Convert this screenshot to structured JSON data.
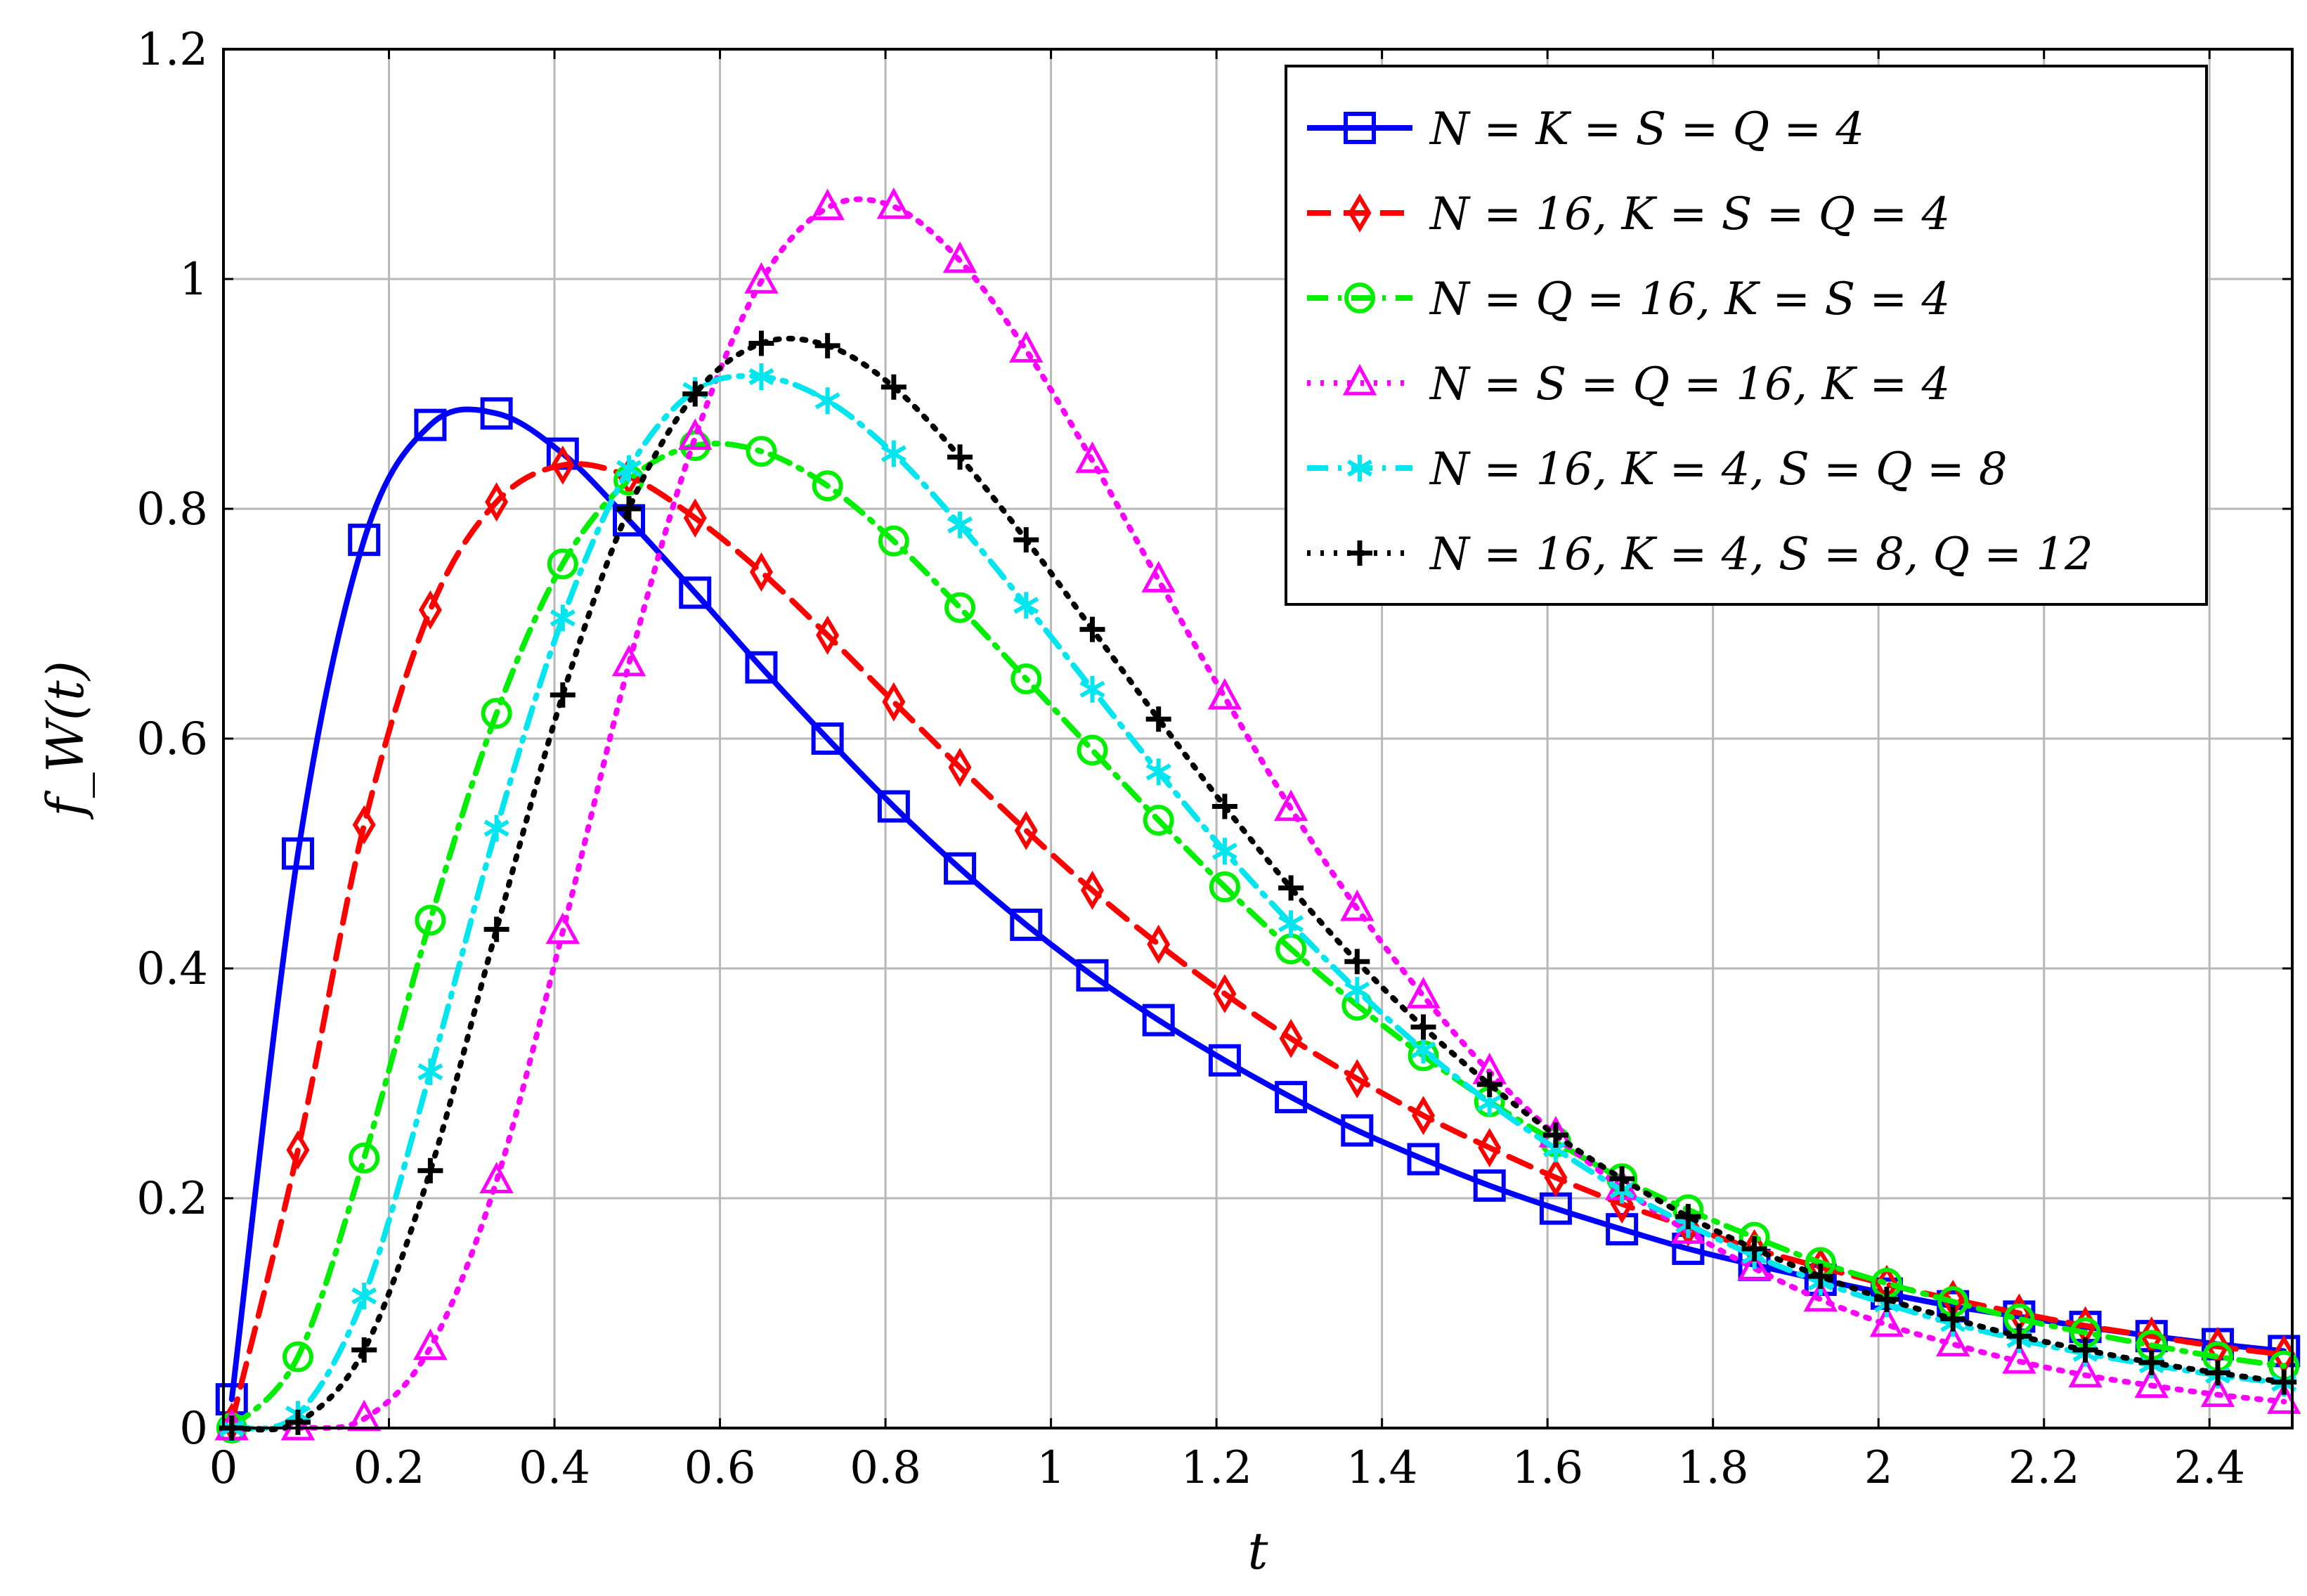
{
  "chart_data": {
    "type": "line",
    "title": "",
    "xlabel": "t",
    "ylabel": "f_W(t)",
    "xlim": [
      0,
      2.5
    ],
    "ylim": [
      0,
      1.2
    ],
    "grid": true,
    "legend_position": "top-right",
    "xticks": [
      0,
      0.2,
      0.4,
      0.6,
      0.8,
      1,
      1.2,
      1.4,
      1.6,
      1.8,
      2,
      2.2,
      2.4
    ],
    "xtick_labels": [
      "0",
      "0.2",
      "0.4",
      "0.6",
      "0.8",
      "1",
      "1.2",
      "1.4",
      "1.6",
      "1.8",
      "2",
      "2.2",
      "2.4"
    ],
    "yticks": [
      0,
      0.2,
      0.4,
      0.6,
      0.8,
      1,
      1.2
    ],
    "ytick_labels": [
      "0",
      "0.2",
      "0.4",
      "0.6",
      "0.8",
      "1",
      "1.2"
    ],
    "marker_x": [
      0.01,
      0.09,
      0.17,
      0.25,
      0.33,
      0.41,
      0.49,
      0.57,
      0.65,
      0.73,
      0.81,
      0.89,
      0.97,
      1.05,
      1.13,
      1.21,
      1.29,
      1.37,
      1.45,
      1.53,
      1.61,
      1.69,
      1.77,
      1.85,
      1.93,
      2.01,
      2.09,
      2.17,
      2.25,
      2.33,
      2.41,
      2.49
    ],
    "series": [
      {
        "name": "N = K = S = Q = 4",
        "color": "#0000ff",
        "line_style": "solid",
        "marker": "square",
        "values": [
          0.025,
          0.5,
          0.773,
          0.873,
          0.883,
          0.848,
          0.79,
          0.727,
          0.662,
          0.6,
          0.541,
          0.487,
          0.438,
          0.394,
          0.355,
          0.32,
          0.288,
          0.259,
          0.234,
          0.211,
          0.191,
          0.173,
          0.156,
          0.142,
          0.129,
          0.117,
          0.106,
          0.097,
          0.088,
          0.08,
          0.073,
          0.067
        ]
      },
      {
        "name": "N = 16, K = S = Q = 4",
        "color": "#ff0000",
        "line_style": "dashed",
        "marker": "diamond",
        "values": [
          0.005,
          0.242,
          0.525,
          0.712,
          0.806,
          0.838,
          0.828,
          0.792,
          0.745,
          0.69,
          0.632,
          0.575,
          0.52,
          0.468,
          0.421,
          0.378,
          0.339,
          0.304,
          0.272,
          0.244,
          0.218,
          0.195,
          0.175,
          0.156,
          0.14,
          0.125,
          0.112,
          0.1,
          0.089,
          0.08,
          0.071,
          0.064
        ]
      },
      {
        "name": "N = Q = 16, K = S = 4",
        "color": "#00ee00",
        "line_style": "dashdot",
        "marker": "circle",
        "values": [
          0.0,
          0.062,
          0.235,
          0.442,
          0.622,
          0.752,
          0.825,
          0.855,
          0.85,
          0.82,
          0.772,
          0.714,
          0.652,
          0.59,
          0.529,
          0.471,
          0.417,
          0.368,
          0.324,
          0.284,
          0.249,
          0.217,
          0.19,
          0.166,
          0.144,
          0.126,
          0.11,
          0.095,
          0.083,
          0.072,
          0.062,
          0.054
        ]
      },
      {
        "name": "N = S = Q = 16, K = 4",
        "color": "#ff00ff",
        "line_style": "dotted",
        "marker": "triangle",
        "values": [
          0.0,
          0.0,
          0.008,
          0.07,
          0.215,
          0.432,
          0.665,
          0.862,
          0.998,
          1.062,
          1.063,
          1.016,
          0.938,
          0.842,
          0.738,
          0.636,
          0.539,
          0.452,
          0.376,
          0.31,
          0.255,
          0.209,
          0.171,
          0.139,
          0.112,
          0.09,
          0.073,
          0.058,
          0.046,
          0.037,
          0.029,
          0.023
        ]
      },
      {
        "name": "N = 16, K = 4, S = Q = 8",
        "color": "#00e5ee",
        "line_style": "dashdot",
        "marker": "asterisk",
        "values": [
          0.0,
          0.012,
          0.115,
          0.31,
          0.522,
          0.705,
          0.835,
          0.903,
          0.915,
          0.894,
          0.848,
          0.786,
          0.716,
          0.643,
          0.571,
          0.502,
          0.439,
          0.381,
          0.329,
          0.283,
          0.243,
          0.207,
          0.177,
          0.15,
          0.127,
          0.108,
          0.091,
          0.077,
          0.065,
          0.055,
          0.046,
          0.039
        ]
      },
      {
        "name": "N = 16, K = 4, S = 8, Q = 12",
        "color": "#000000",
        "line_style": "dotted",
        "marker": "plus",
        "values": [
          0.0,
          0.005,
          0.068,
          0.224,
          0.434,
          0.638,
          0.8,
          0.9,
          0.944,
          0.942,
          0.906,
          0.845,
          0.773,
          0.695,
          0.617,
          0.541,
          0.47,
          0.406,
          0.349,
          0.299,
          0.255,
          0.217,
          0.184,
          0.156,
          0.132,
          0.112,
          0.095,
          0.08,
          0.068,
          0.057,
          0.048,
          0.04
        ]
      }
    ]
  }
}
